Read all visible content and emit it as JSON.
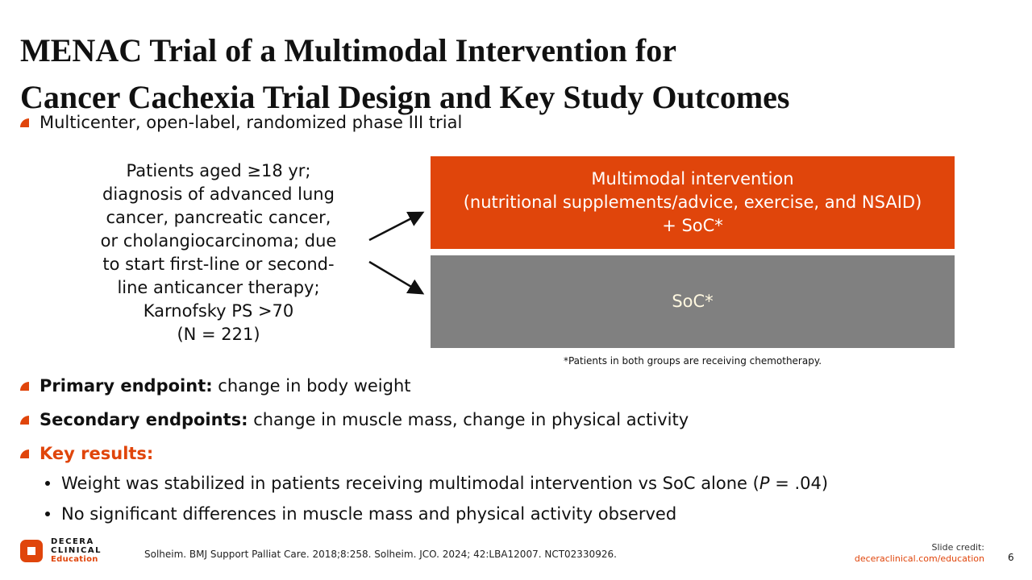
{
  "title": {
    "line1": "MENAC Trial of a Multimodal Intervention for",
    "line2": "Cancer Cachexia Trial Design and Key Study Outcomes"
  },
  "design_bullet": "Multicenter, open-label, randomized phase III trial",
  "population": [
    "Patients aged ≥18 yr;",
    "diagnosis of advanced lung",
    "cancer, pancreatic cancer,",
    "or cholangiocarcinoma; due",
    "to start first-line or second-",
    "line anticancer therapy;",
    "Karnofsky PS >70",
    "(N = 221)"
  ],
  "arms": {
    "intervention": [
      "Multimodal intervention",
      "(nutritional supplements/advice, exercise, and NSAID)",
      "+ SoC*"
    ],
    "control": "SoC*"
  },
  "footnote": "*Patients in both groups are receiving chemotherapy.",
  "endpoints": {
    "primary_label": "Primary endpoint:",
    "primary_text": " change in body weight",
    "secondary_label": "Secondary endpoints:",
    "secondary_text": " change in muscle mass, change in physical activity",
    "key_label": "Key results:",
    "results": [
      {
        "pre": "Weight was stabilized in patients receiving multimodal intervention vs SoC alone (",
        "italic": "P",
        "post": " = .04)"
      },
      {
        "pre": "No significant differences in muscle mass and physical activity observed"
      }
    ]
  },
  "logo": {
    "line1": "DECERA",
    "line2": "CLINICAL",
    "line3": "Education"
  },
  "reference": "Solheim. BMJ Support Palliat Care. 2018;8:258. Solheim. JCO. 2024; 42:LBA12007. NCT02330926.",
  "credit": {
    "label": "Slide credit:",
    "link": "deceraclinical.com/education"
  },
  "page_number": "6",
  "colors": {
    "accent": "#e0450b",
    "control": "#808080"
  }
}
